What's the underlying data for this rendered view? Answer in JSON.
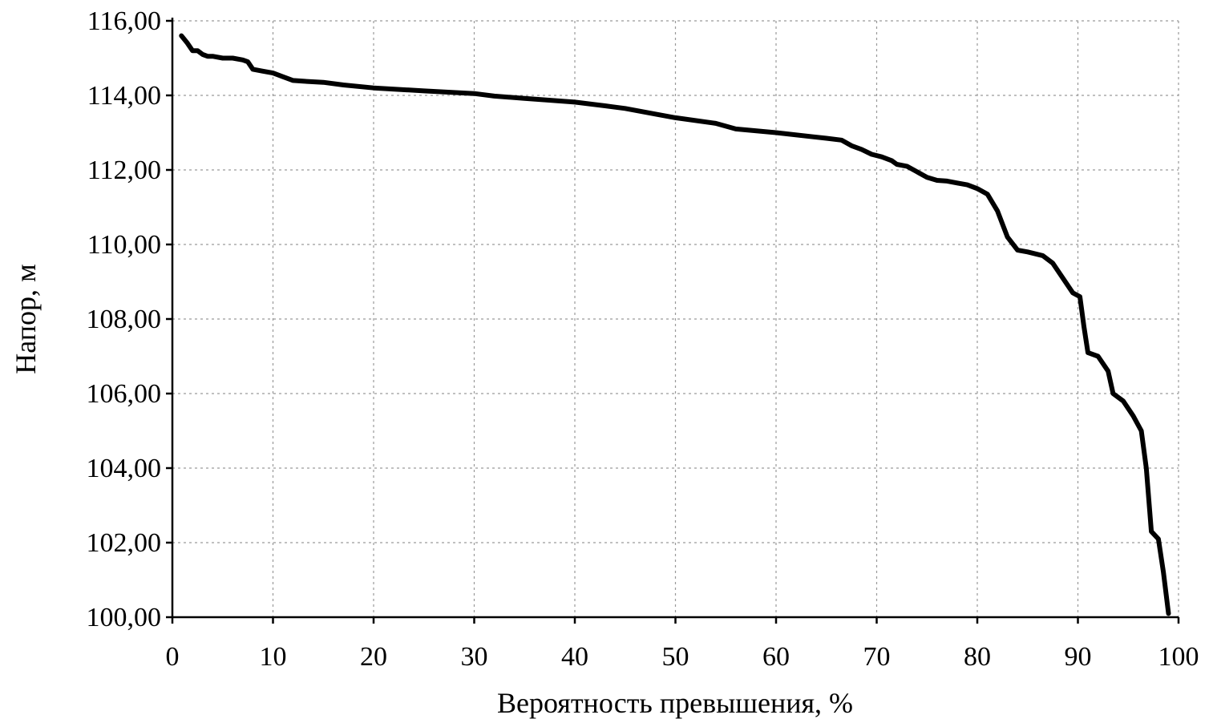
{
  "chart_data": {
    "type": "line",
    "title": "",
    "xlabel": "Вероятность превышения, %",
    "ylabel": "Напор, м",
    "xlim": [
      0,
      100
    ],
    "ylim": [
      100,
      116
    ],
    "x_ticks": [
      0,
      10,
      20,
      30,
      40,
      50,
      60,
      70,
      80,
      90,
      100
    ],
    "x_tick_labels": [
      "0",
      "10",
      "20",
      "30",
      "40",
      "50",
      "60",
      "70",
      "80",
      "90",
      "100"
    ],
    "y_ticks": [
      100,
      102,
      104,
      106,
      108,
      110,
      112,
      114,
      116
    ],
    "y_tick_labels": [
      "100,00",
      "102,00",
      "104,00",
      "106,00",
      "108,00",
      "110,00",
      "112,00",
      "114,00",
      "116,00"
    ],
    "grid": true,
    "legend": "none",
    "series": [
      {
        "color": "#000000",
        "x": [
          0.9,
          1.5,
          2.0,
          2.5,
          3.0,
          3.5,
          4.0,
          5.0,
          6.0,
          7.0,
          7.5,
          8.0,
          9.0,
          10.0,
          11.0,
          12.0,
          13.0,
          15.0,
          17.0,
          20.0,
          25.0,
          30.0,
          32.0,
          35.0,
          40.0,
          43.0,
          45.0,
          48.0,
          50.0,
          54.0,
          56.0,
          60.0,
          65.0,
          66.5,
          67.5,
          68.5,
          69.5,
          70.5,
          71.5,
          72.0,
          73.0,
          74.0,
          75.0,
          76.0,
          77.0,
          78.0,
          79.0,
          80.0,
          81.0,
          82.0,
          83.0,
          84.0,
          85.0,
          86.5,
          87.5,
          88.5,
          89.5,
          90.2,
          90.6,
          91.0,
          92.0,
          93.0,
          93.5,
          94.5,
          95.5,
          96.3,
          96.8,
          97.3,
          98.0,
          98.5,
          99.0
        ],
        "values": [
          115.6,
          115.4,
          115.2,
          115.2,
          115.1,
          115.05,
          115.05,
          115.0,
          115.0,
          114.95,
          114.9,
          114.7,
          114.65,
          114.6,
          114.5,
          114.4,
          114.38,
          114.35,
          114.28,
          114.2,
          114.12,
          114.05,
          113.98,
          113.92,
          113.82,
          113.72,
          113.65,
          113.5,
          113.4,
          113.25,
          113.1,
          113.0,
          112.85,
          112.8,
          112.65,
          112.55,
          112.42,
          112.35,
          112.25,
          112.15,
          112.1,
          111.95,
          111.8,
          111.72,
          111.7,
          111.65,
          111.6,
          111.5,
          111.35,
          110.9,
          110.2,
          109.85,
          109.8,
          109.7,
          109.5,
          109.1,
          108.7,
          108.6,
          107.8,
          107.1,
          107.0,
          106.6,
          106.0,
          105.8,
          105.4,
          105.0,
          104.0,
          102.3,
          102.1,
          101.2,
          100.1
        ]
      }
    ]
  }
}
